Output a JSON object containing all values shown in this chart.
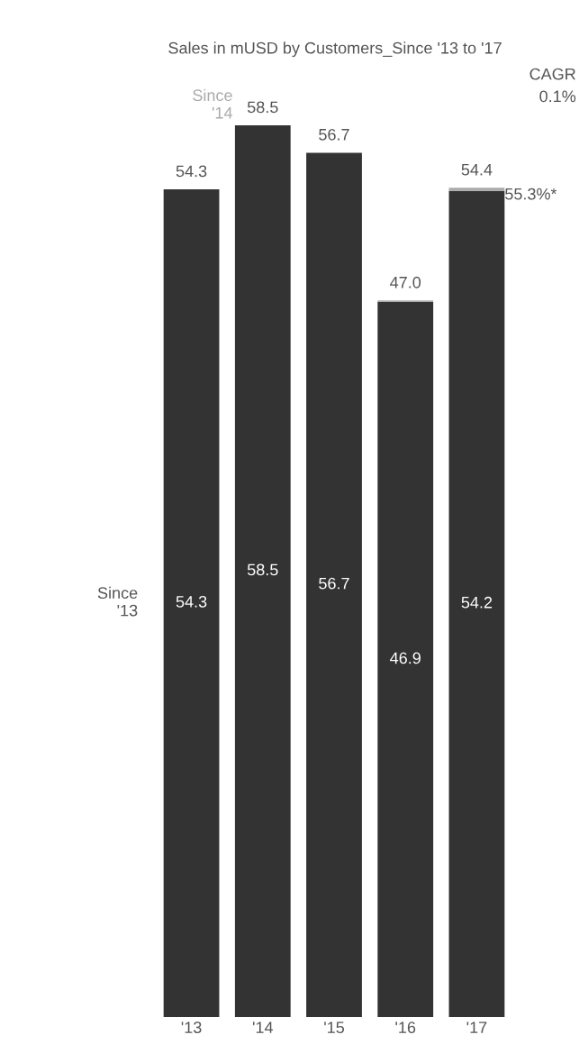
{
  "chart_data": {
    "type": "bar",
    "title": "Sales in mUSD by Customers_Since '13 to '17",
    "categories": [
      "'13",
      "'14",
      "'15",
      "'16",
      "'17"
    ],
    "stacked": true,
    "tick_labels": "x",
    "grid": false,
    "legend": false,
    "series": [
      {
        "name": "Since '13",
        "color": "#333333",
        "values": [
          54.3,
          58.5,
          56.7,
          46.9,
          54.2
        ],
        "value_labels": [
          "54.3",
          "58.5",
          "56.7",
          "46.9",
          "54.2"
        ]
      },
      {
        "name": "Since '14",
        "color": "#aaaaaa",
        "values": [
          null,
          0.0,
          0.0,
          0.1,
          0.2
        ]
      }
    ],
    "totals": [
      "54.3",
      "58.5",
      "56.7",
      "47.0",
      "54.4"
    ],
    "annotations": [
      "CAGR\n0.1%",
      {
        "text": "55.3%*",
        "x": "'17",
        "y": 54.4
      }
    ]
  }
}
